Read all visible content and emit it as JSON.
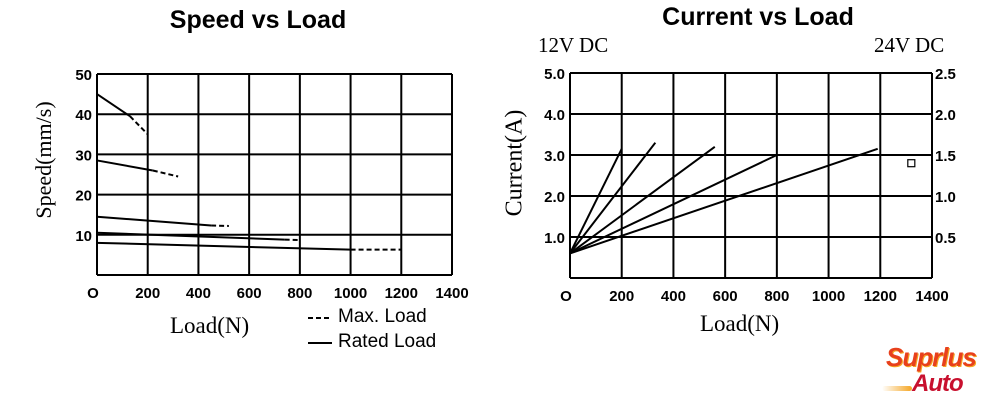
{
  "chart_data": [
    {
      "type": "line",
      "title": "Speed vs Load",
      "xlabel": "Load(N)",
      "ylabel": "Speed(mm/s)",
      "xlim": [
        0,
        1400
      ],
      "ylim": [
        0,
        50
      ],
      "xticks": [
        "O",
        "200",
        "400",
        "600",
        "800",
        "1000",
        "1200",
        "1400"
      ],
      "yticks": [
        "10",
        "20",
        "30",
        "40",
        "50"
      ],
      "grid": true,
      "legend": {
        "position": "bottom-right",
        "entries": [
          {
            "label": "Max. Load",
            "style": "dashed"
          },
          {
            "label": "Rated Load",
            "style": "solid"
          }
        ]
      },
      "series": [
        {
          "rated": [
            [
              0,
              45
            ],
            [
              130,
              39.5
            ]
          ],
          "max": [
            [
              130,
              39.5
            ],
            [
              200,
              35
            ]
          ]
        },
        {
          "rated": [
            [
              0,
              28.5
            ],
            [
              220,
              26
            ]
          ],
          "max": [
            [
              220,
              26
            ],
            [
              320,
              24.5
            ]
          ]
        },
        {
          "rated": [
            [
              0,
              14.5
            ],
            [
              450,
              12.3
            ]
          ],
          "max": [
            [
              450,
              12.3
            ],
            [
              520,
              12.2
            ]
          ]
        },
        {
          "rated": [
            [
              0,
              10.5
            ],
            [
              740,
              8.8
            ]
          ],
          "max": [
            [
              740,
              8.8
            ],
            [
              800,
              8.7
            ]
          ]
        },
        {
          "rated": [
            [
              0,
              8
            ],
            [
              1000,
              6.3
            ]
          ],
          "max": [
            [
              1000,
              6.3
            ],
            [
              1200,
              6.3
            ]
          ]
        }
      ]
    },
    {
      "type": "line",
      "title": "Current vs Load",
      "xlabel": "Load(N)",
      "ylabel": "Current(A)",
      "left_axis_label": "12V DC",
      "right_axis_label": "24V DC",
      "xlim": [
        0,
        1400
      ],
      "ylim": [
        0,
        5.0
      ],
      "ylim_right": [
        0,
        2.5
      ],
      "xticks": [
        "O",
        "200",
        "400",
        "600",
        "800",
        "1000",
        "1200",
        "1400"
      ],
      "yticks": [
        "1.0",
        "2.0",
        "3.0",
        "4.0",
        "5.0"
      ],
      "yticks_right": [
        "0.5",
        "1.0",
        "1.5",
        "2.0",
        "2.5"
      ],
      "grid": true,
      "series": [
        {
          "points": [
            [
              0,
              0.6
            ],
            [
              200,
              3.15
            ]
          ]
        },
        {
          "points": [
            [
              0,
              0.6
            ],
            [
              330,
              3.3
            ]
          ]
        },
        {
          "points": [
            [
              0,
              0.6
            ],
            [
              560,
              3.2
            ]
          ]
        },
        {
          "points": [
            [
              0,
              0.6
            ],
            [
              800,
              3.0
            ]
          ]
        },
        {
          "points": [
            [
              0,
              0.6
            ],
            [
              1190,
              3.15
            ]
          ]
        }
      ],
      "marker": [
        1320,
        2.8
      ]
    }
  ],
  "logo": {
    "text": "Suprlus Auto",
    "colors": [
      "#e8401c",
      "#f5a623",
      "#c8102e"
    ]
  }
}
